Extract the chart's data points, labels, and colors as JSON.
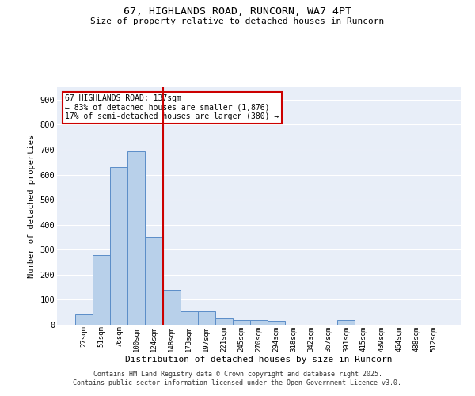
{
  "title1": "67, HIGHLANDS ROAD, RUNCORN, WA7 4PT",
  "title2": "Size of property relative to detached houses in Runcorn",
  "xlabel": "Distribution of detached houses by size in Runcorn",
  "ylabel": "Number of detached properties",
  "bar_color": "#b8d0ea",
  "bar_edge_color": "#5b8dc8",
  "background_color": "#e8eef8",
  "grid_color": "#ffffff",
  "annotation_box_color": "#cc0000",
  "vline_color": "#cc0000",
  "annotation_text": "67 HIGHLANDS ROAD: 137sqm\n← 83% of detached houses are smaller (1,876)\n17% of semi-detached houses are larger (380) →",
  "categories": [
    "27sqm",
    "51sqm",
    "76sqm",
    "100sqm",
    "124sqm",
    "148sqm",
    "173sqm",
    "197sqm",
    "221sqm",
    "245sqm",
    "270sqm",
    "294sqm",
    "318sqm",
    "342sqm",
    "367sqm",
    "391sqm",
    "415sqm",
    "439sqm",
    "464sqm",
    "488sqm",
    "512sqm"
  ],
  "values": [
    42,
    280,
    630,
    695,
    350,
    140,
    55,
    55,
    25,
    20,
    20,
    15,
    0,
    0,
    0,
    18,
    0,
    0,
    0,
    0,
    0
  ],
  "ylim": [
    0,
    950
  ],
  "yticks": [
    0,
    100,
    200,
    300,
    400,
    500,
    600,
    700,
    800,
    900
  ],
  "footer": "Contains HM Land Registry data © Crown copyright and database right 2025.\nContains public sector information licensed under the Open Government Licence v3.0.",
  "figsize": [
    6.0,
    5.0
  ],
  "dpi": 100,
  "vline_pos": 4.5
}
